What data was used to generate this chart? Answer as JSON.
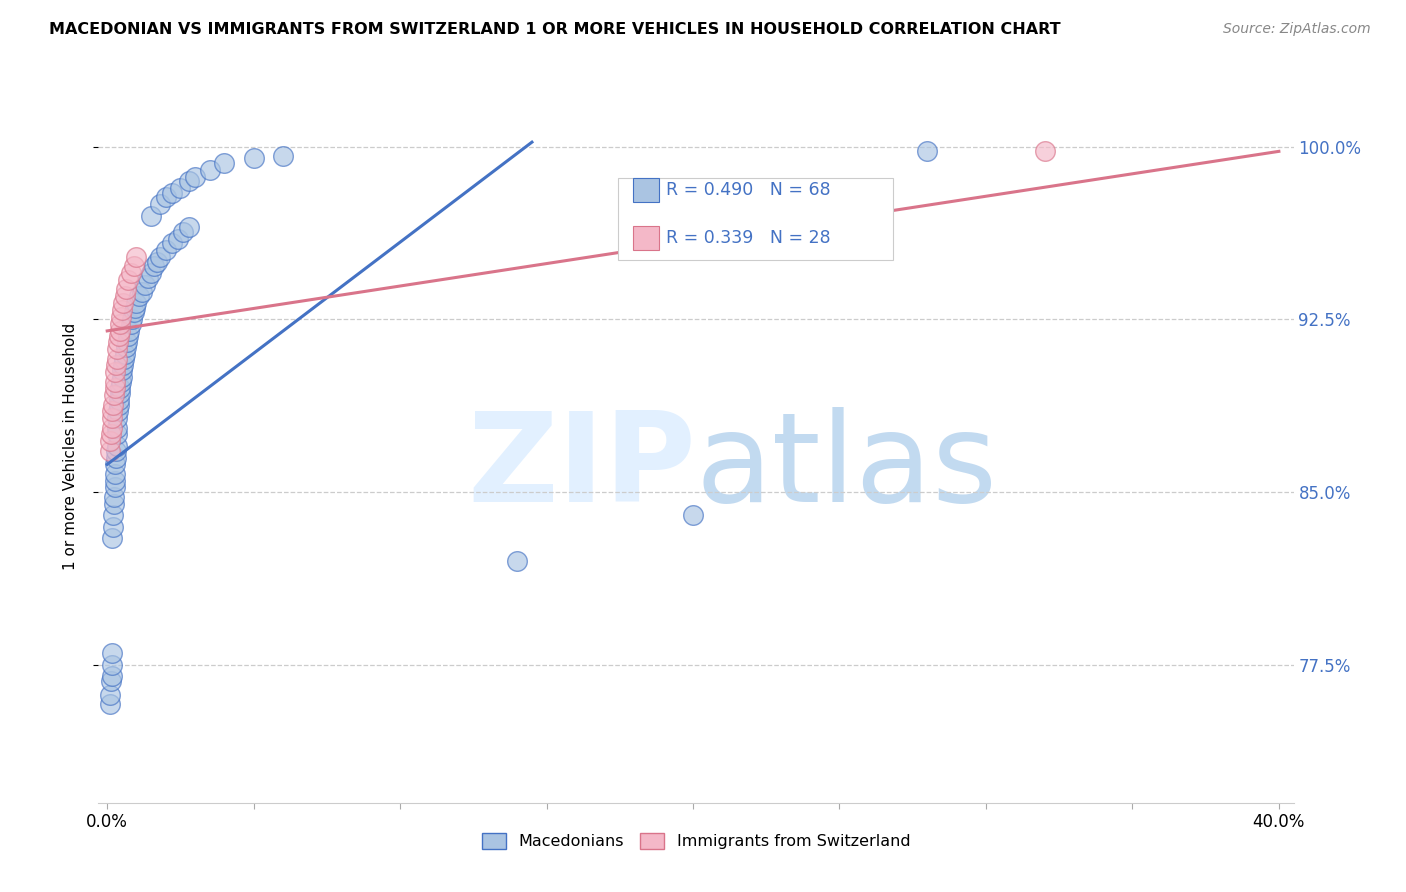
{
  "title": "MACEDONIAN VS IMMIGRANTS FROM SWITZERLAND 1 OR MORE VEHICLES IN HOUSEHOLD CORRELATION CHART",
  "source": "Source: ZipAtlas.com",
  "ylabel": "1 or more Vehicles in Household",
  "blue_R": 0.49,
  "blue_N": 68,
  "pink_R": 0.339,
  "pink_N": 28,
  "blue_color": "#aac4e2",
  "blue_line_color": "#4472c4",
  "pink_color": "#f4b8c8",
  "pink_line_color": "#d9748a",
  "legend_R_color": "#4472c4",
  "ytick_color": "#4472c4",
  "xlim": [
    -0.003,
    0.405
  ],
  "ylim": [
    0.715,
    1.025
  ],
  "yticks": [
    0.775,
    0.85,
    0.925,
    1.0
  ],
  "yticklabels": [
    "77.5%",
    "85.0%",
    "92.5%",
    "100.0%"
  ],
  "xtick_positions": [
    0.0,
    0.05,
    0.1,
    0.15,
    0.2,
    0.25,
    0.3,
    0.35,
    0.4
  ],
  "blue_line_x0": 0.0,
  "blue_line_y0": 0.862,
  "blue_line_x1": 0.145,
  "blue_line_y1": 1.002,
  "pink_line_x0": 0.0,
  "pink_line_y0": 0.92,
  "pink_line_x1": 0.4,
  "pink_line_y1": 0.998,
  "blue_points_x": [
    0.0008,
    0.001,
    0.0012,
    0.0015,
    0.0015,
    0.0018,
    0.0018,
    0.002,
    0.002,
    0.0022,
    0.0022,
    0.0025,
    0.0025,
    0.0028,
    0.0028,
    0.003,
    0.003,
    0.0032,
    0.0032,
    0.0035,
    0.0035,
    0.0038,
    0.004,
    0.004,
    0.0042,
    0.0045,
    0.0048,
    0.005,
    0.0052,
    0.0055,
    0.0058,
    0.006,
    0.0065,
    0.0068,
    0.007,
    0.0075,
    0.008,
    0.0085,
    0.009,
    0.0095,
    0.01,
    0.011,
    0.012,
    0.013,
    0.014,
    0.015,
    0.016,
    0.017,
    0.018,
    0.02,
    0.022,
    0.024,
    0.026,
    0.028,
    0.015,
    0.018,
    0.02,
    0.022,
    0.025,
    0.028,
    0.03,
    0.035,
    0.04,
    0.05,
    0.06,
    0.14,
    0.2,
    0.28
  ],
  "blue_points_y": [
    0.758,
    0.762,
    0.768,
    0.77,
    0.775,
    0.78,
    0.83,
    0.835,
    0.84,
    0.845,
    0.848,
    0.852,
    0.855,
    0.858,
    0.862,
    0.865,
    0.868,
    0.87,
    0.875,
    0.878,
    0.882,
    0.885,
    0.888,
    0.89,
    0.893,
    0.895,
    0.898,
    0.9,
    0.903,
    0.905,
    0.908,
    0.91,
    0.913,
    0.915,
    0.918,
    0.92,
    0.923,
    0.925,
    0.928,
    0.93,
    0.932,
    0.935,
    0.937,
    0.94,
    0.943,
    0.945,
    0.948,
    0.95,
    0.952,
    0.955,
    0.958,
    0.96,
    0.963,
    0.965,
    0.97,
    0.975,
    0.978,
    0.98,
    0.982,
    0.985,
    0.987,
    0.99,
    0.993,
    0.995,
    0.996,
    0.82,
    0.84,
    0.998
  ],
  "pink_points_x": [
    0.0008,
    0.001,
    0.0012,
    0.0015,
    0.0015,
    0.0018,
    0.002,
    0.0022,
    0.0025,
    0.0025,
    0.0028,
    0.003,
    0.0032,
    0.0035,
    0.0038,
    0.004,
    0.0042,
    0.0045,
    0.0048,
    0.005,
    0.0055,
    0.006,
    0.0065,
    0.007,
    0.008,
    0.009,
    0.01,
    0.32
  ],
  "pink_points_y": [
    0.868,
    0.872,
    0.875,
    0.878,
    0.882,
    0.885,
    0.888,
    0.892,
    0.895,
    0.898,
    0.902,
    0.905,
    0.908,
    0.912,
    0.915,
    0.918,
    0.92,
    0.923,
    0.926,
    0.929,
    0.932,
    0.935,
    0.938,
    0.942,
    0.945,
    0.948,
    0.952,
    0.998
  ]
}
